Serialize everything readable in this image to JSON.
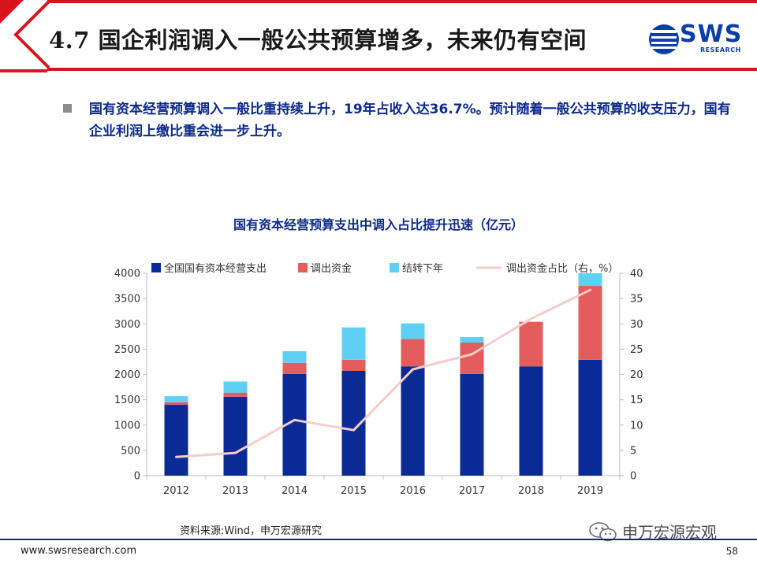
{
  "header": {
    "title": "4.7 国企利润调入一般公共预算增多，未来仍有空间",
    "logo_text": "SWS",
    "logo_sub": "RESEARCH"
  },
  "bullet": {
    "text": "国有资本经营预算调入一般比重持续上升，19年占收入达36.7%。预计随着一般公共预算的收支压力，国有企业利润上缴比重会进一步上升。"
  },
  "chart_data": {
    "type": "bar",
    "title": "国有资本经营预算支出中调入占比提升迅速（亿元）",
    "categories": [
      "2012",
      "2013",
      "2014",
      "2015",
      "2016",
      "2017",
      "2018",
      "2019"
    ],
    "stacked": true,
    "series": [
      {
        "name": "全国国有资本经营支出",
        "type": "bar",
        "axis": "left",
        "color": "#0a2a94",
        "values": [
          1400,
          1560,
          2010,
          2070,
          2160,
          2010,
          2160,
          2290
        ]
      },
      {
        "name": "调出资金",
        "type": "bar",
        "axis": "left",
        "color": "#e45c5c",
        "values": [
          50,
          80,
          220,
          220,
          540,
          620,
          880,
          1460
        ]
      },
      {
        "name": "结转下年",
        "type": "bar",
        "axis": "left",
        "color": "#5fd0f5",
        "values": [
          120,
          220,
          230,
          640,
          310,
          110,
          0,
          250
        ]
      },
      {
        "name": "调出资金占比（右，%）",
        "type": "line",
        "axis": "right",
        "color": "#f5cccc",
        "values": [
          3.7,
          4.5,
          11,
          9,
          21,
          24,
          31,
          36.7
        ]
      }
    ],
    "ylim_left": [
      0,
      4000
    ],
    "yticks_left": [
      0,
      500,
      1000,
      1500,
      2000,
      2500,
      3000,
      3500,
      4000
    ],
    "ylim_right": [
      0,
      40
    ],
    "yticks_right": [
      0,
      5,
      10,
      15,
      20,
      25,
      30,
      35,
      40
    ],
    "grid": false,
    "legend": "top"
  },
  "source": "资料来源:Wind，申万宏源研究",
  "watermark": "申万宏源宏观",
  "footer": {
    "url": "www.swsresearch.com",
    "page": "58"
  },
  "colors": {
    "accent_red": "#d9141c",
    "brand_blue": "#0d2a8a"
  }
}
